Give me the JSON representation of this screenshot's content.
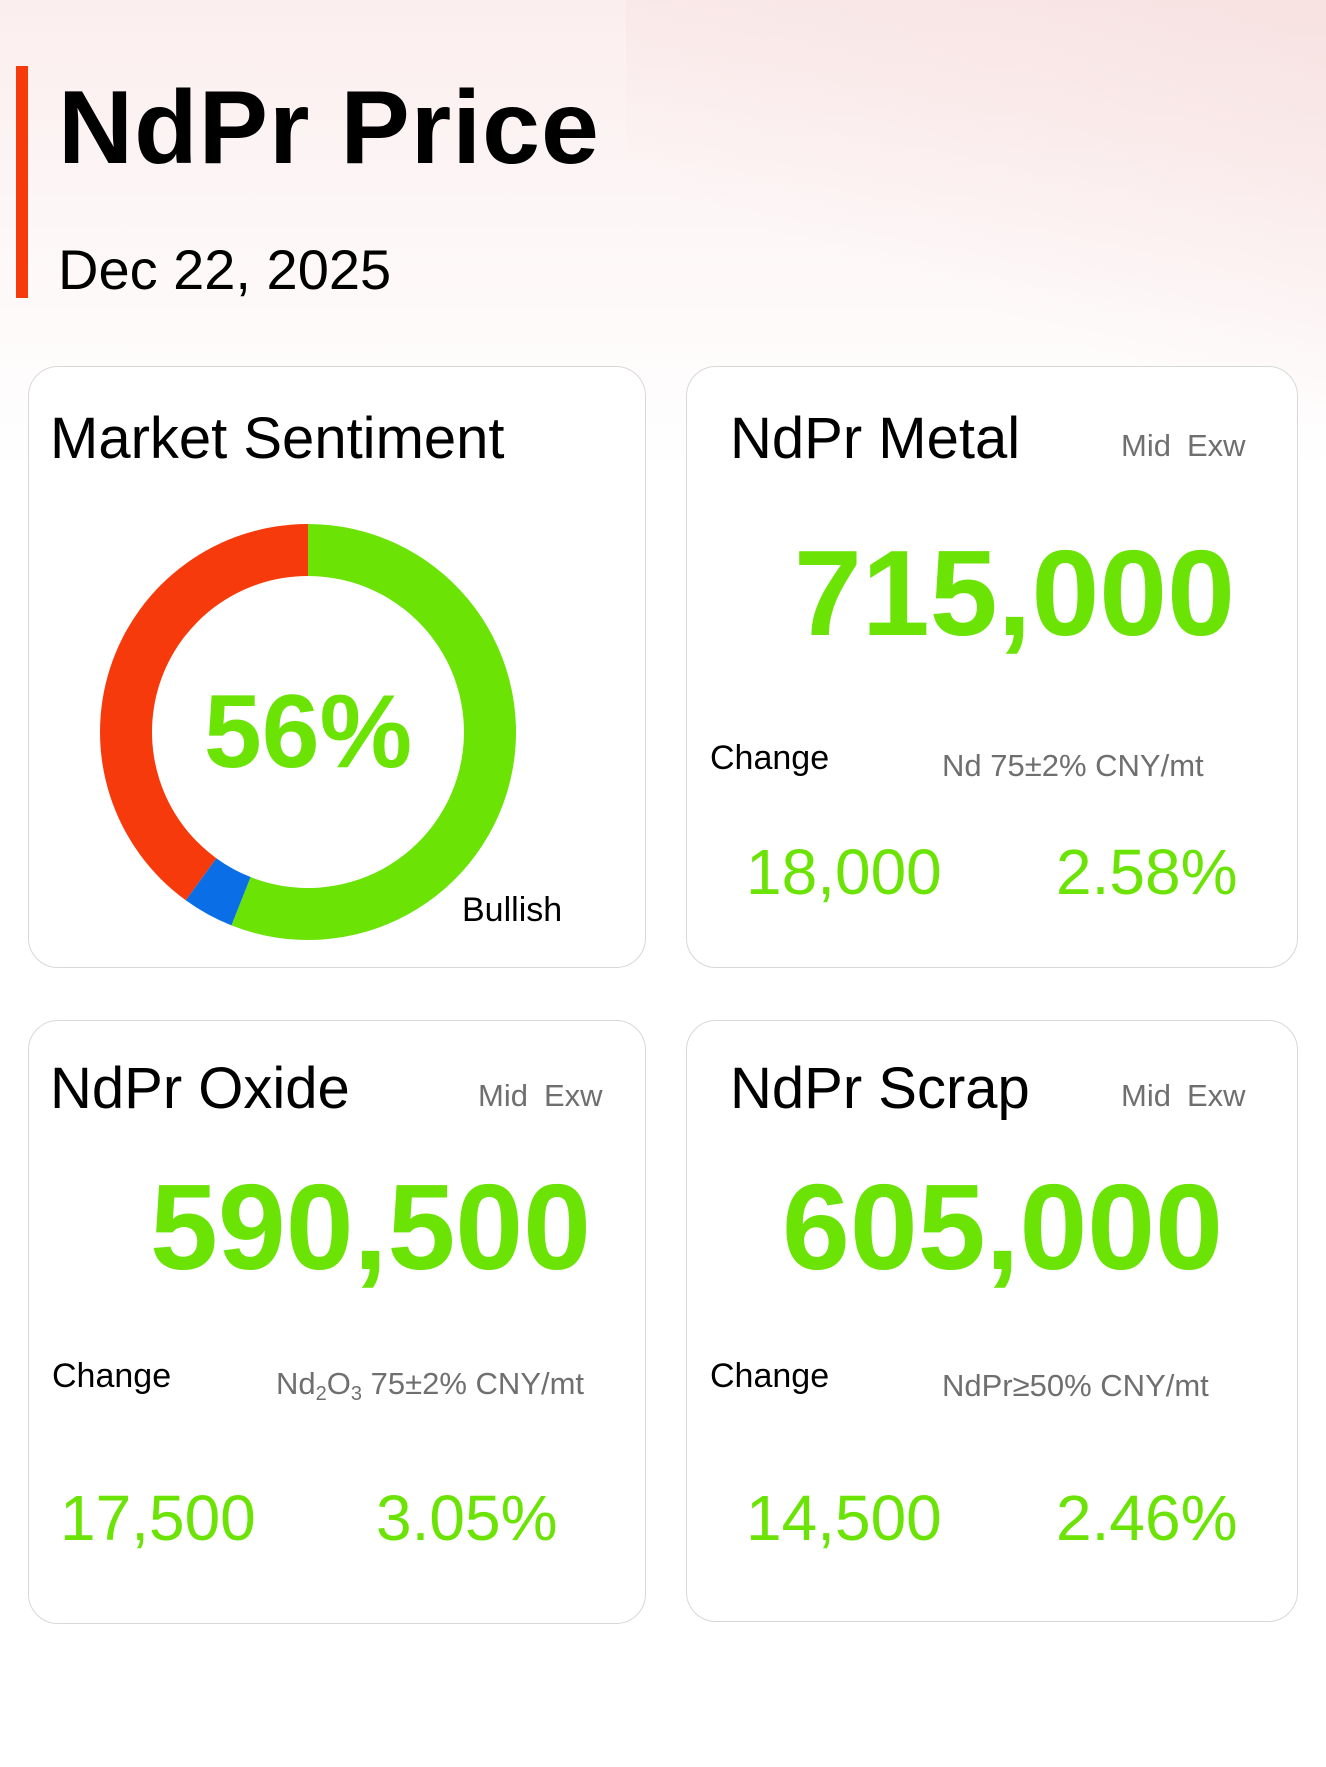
{
  "header": {
    "title": "NdPr Price",
    "date": "Dec 22, 2025"
  },
  "colors": {
    "accent": "#f63a0c",
    "positive": "#6ae305",
    "bearish": "#f63a0c",
    "neutral": "#0a6fe6"
  },
  "sentiment": {
    "title": "Market Sentiment",
    "percent_label": "56%",
    "bullish_label": "Bullish",
    "chart_data": {
      "type": "pie",
      "segments": [
        {
          "label": "Bullish",
          "value": 56,
          "color": "#6ae305"
        },
        {
          "label": "Neutral",
          "value": 4,
          "color": "#0a6fe6"
        },
        {
          "label": "Bearish",
          "value": 40,
          "color": "#f63a0c"
        }
      ]
    }
  },
  "metal": {
    "title": "NdPr Metal",
    "tag_mid": "Mid",
    "tag_exw": "Exw",
    "price": "715,000",
    "change_label": "Change",
    "spec": "Nd 75±2% CNY/mt",
    "change_abs": "18,000",
    "change_pct": "2.58%"
  },
  "oxide": {
    "title": "NdPr Oxide",
    "tag_mid": "Mid",
    "tag_exw": "Exw",
    "price": "590,500",
    "change_label": "Change",
    "spec_nd": "Nd",
    "spec_sub1": "2",
    "spec_o": "O",
    "spec_sub2": "3",
    "spec_rest": " 75±2% CNY/mt",
    "change_abs": "17,500",
    "change_pct": "3.05%"
  },
  "scrap": {
    "title": "NdPr Scrap",
    "tag_mid": "Mid",
    "tag_exw": "Exw",
    "price": "605,000",
    "change_label": "Change",
    "spec": "NdPr≥50% CNY/mt",
    "change_abs": "14,500",
    "change_pct": "2.46%"
  }
}
